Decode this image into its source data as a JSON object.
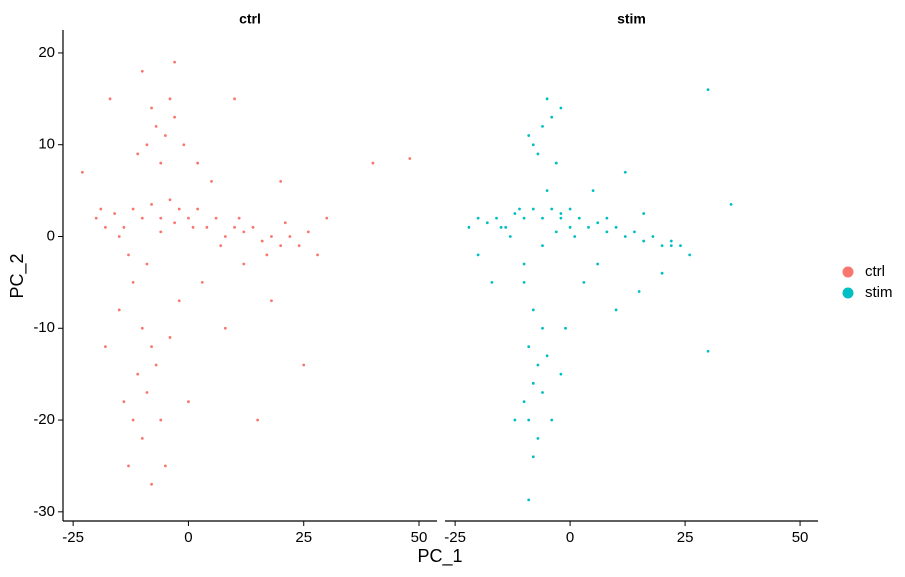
{
  "chart_data": {
    "type": "scatter",
    "x_label": "PC_1",
    "y_label": "PC_2",
    "xlim": [
      -27.2,
      53.9
    ],
    "xticks": [
      -25,
      0,
      25,
      50
    ],
    "ylim": [
      -31,
      22.5
    ],
    "yticks": [
      20,
      10,
      0,
      -10,
      -20,
      -30
    ],
    "series": [
      {
        "name": "ctrl",
        "color": "#F8766D",
        "x": [
          -20,
          -18,
          -16,
          -14,
          -12,
          -10,
          -8,
          -6,
          -4,
          -2,
          0,
          2,
          4,
          6,
          8,
          10,
          12,
          14,
          16,
          18,
          20,
          22,
          24,
          26,
          28,
          -9,
          -7,
          -5,
          -3,
          -1,
          -6,
          -11,
          -4,
          -8,
          2,
          5,
          -12,
          -10,
          -8,
          -11,
          -9,
          -7,
          -12,
          -10,
          -6,
          -13,
          -5,
          -8,
          -15,
          -2,
          3,
          8,
          12,
          18,
          25,
          -17,
          10,
          20,
          30,
          40,
          48,
          -23,
          -18,
          0,
          15,
          -3,
          -10,
          -15,
          -13,
          -19,
          -6,
          -3,
          1,
          7,
          11,
          17,
          21,
          -9,
          -14,
          -4
        ],
        "y": [
          2,
          1,
          2.5,
          1,
          3,
          2,
          3.5,
          2,
          4,
          3,
          2,
          3,
          1,
          2,
          0,
          1,
          0.5,
          1,
          -0.5,
          0,
          -1,
          0,
          -1,
          0.5,
          -2,
          10,
          12,
          11,
          13,
          10,
          8,
          9,
          15,
          14,
          8,
          6,
          -5,
          -10,
          -12,
          -15,
          -17,
          -14,
          -20,
          -22,
          -20,
          -25,
          -25,
          -27,
          -8,
          -7,
          -5,
          -10,
          -3,
          -7,
          -14,
          15,
          15,
          6,
          2,
          8,
          8.5,
          7,
          -12,
          -18,
          -20,
          19,
          18,
          0,
          -2,
          3,
          0.5,
          1.5,
          1,
          -1,
          2,
          -2,
          1.5,
          -3,
          -18,
          -11
        ]
      },
      {
        "name": "stim",
        "color": "#00BFC4",
        "x": [
          -22,
          -20,
          -18,
          -16,
          -14,
          -12,
          -10,
          -8,
          -6,
          -4,
          -2,
          0,
          2,
          4,
          6,
          8,
          10,
          12,
          14,
          16,
          18,
          20,
          22,
          24,
          26,
          -8,
          -6,
          -4,
          -2,
          -9,
          -5,
          -7,
          -3,
          -10,
          -8,
          -6,
          -9,
          -7,
          -5,
          -8,
          -10,
          -6,
          -9,
          -7,
          -8,
          -9,
          -4,
          -12,
          -2,
          3,
          6,
          10,
          15,
          20,
          30,
          35,
          30,
          -17,
          -20,
          5,
          12,
          -1,
          -13,
          -15,
          -11,
          -3,
          0,
          8,
          16,
          22,
          -10,
          -6,
          -5,
          -2,
          1
        ],
        "y": [
          1,
          2,
          1.5,
          2,
          1,
          2.5,
          2,
          3,
          2,
          3,
          2.5,
          3,
          2,
          1,
          1.5,
          0.5,
          1,
          0,
          0.5,
          -0.5,
          0,
          -1,
          -0.5,
          -1,
          -2,
          10,
          12,
          13,
          14,
          11,
          15,
          9,
          8,
          -5,
          -8,
          -10,
          -12,
          -14,
          -13,
          -16,
          -18,
          -17,
          -20,
          -22,
          -24,
          -28.7,
          -20,
          -20,
          -15,
          -5,
          -3,
          -8,
          -6,
          -4,
          -12.5,
          3.5,
          16,
          -5,
          -2,
          5,
          7,
          -10,
          0,
          1,
          3,
          0.5,
          1,
          2,
          2.5,
          -1,
          -3,
          -1,
          5,
          2,
          0
        ]
      }
    ]
  }
}
